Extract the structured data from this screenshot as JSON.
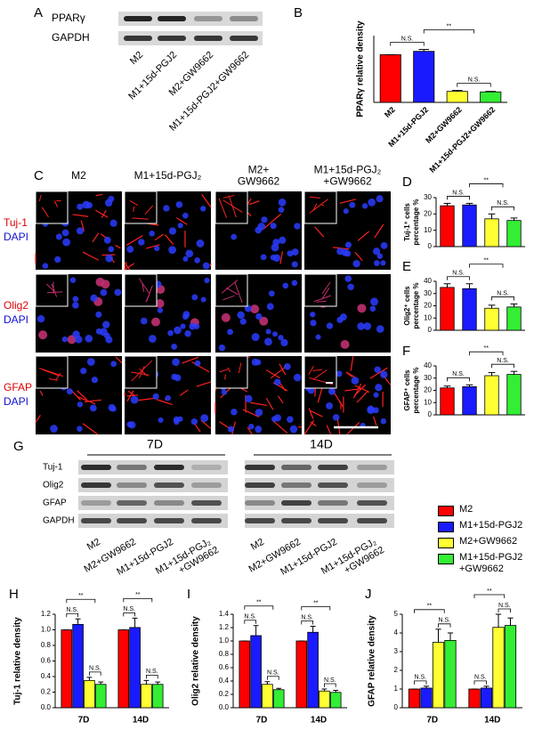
{
  "panel_labels": [
    "A",
    "B",
    "C",
    "D",
    "E",
    "F",
    "G",
    "H",
    "I",
    "J"
  ],
  "blot_a": {
    "rows": [
      "PPARγ",
      "GAPDH"
    ],
    "lanes": [
      "M2",
      "M1+15d-PGJ2",
      "M2+GW9662",
      "M1+15d-PGJ2+GW9662"
    ]
  },
  "micrographs": {
    "columns": [
      "M2",
      "M1+15d-PGJ₂",
      [
        "M2+",
        "GW9662"
      ],
      [
        "M1+15d-PGJ₂",
        "+GW9662"
      ]
    ],
    "rows": [
      [
        "Tuj-1",
        "DAPI"
      ],
      [
        "Olig2",
        "DAPI"
      ],
      [
        "GFAP",
        "DAPI"
      ]
    ]
  },
  "blot_g": {
    "timepoints": [
      "7D",
      "14D"
    ],
    "rows": [
      "Tuj-1",
      "Olig2",
      "GFAP",
      "GAPDH"
    ],
    "lanes": [
      "M2",
      "M2+GW9662",
      "M1+15d-PGJ2",
      [
        "M1+15d-PGJ₂",
        "+GW9662"
      ]
    ]
  },
  "chart_data": [
    {
      "type": "bar",
      "ylabel": "PPARγ  relative density",
      "categories": [
        "M2",
        "M1+15d-PGJ2",
        "M2+GW9662",
        "M1+15d-PGJ2+GW9662"
      ],
      "values": [
        1.0,
        1.07,
        0.23,
        0.22
      ],
      "errors": [
        0,
        0.04,
        0.02,
        0.01
      ],
      "colors": [
        "#ff0000",
        "#1a1aff",
        "#ffff33",
        "#33ee33"
      ],
      "ylim": [
        0,
        1.4
      ],
      "annotations": [
        "N.S.",
        "**",
        "N.S."
      ]
    },
    {
      "type": "bar",
      "ylabel": [
        "Tuj-1⁺ cells",
        "percentage %"
      ],
      "values": [
        25,
        25.5,
        17,
        16
      ],
      "errors": [
        1.5,
        1,
        3,
        1.5
      ],
      "colors": [
        "#ff0000",
        "#1a1aff",
        "#ffff33",
        "#33ee33"
      ],
      "ylim": [
        0,
        30
      ],
      "yticks": [
        0,
        10,
        20,
        30
      ],
      "annotations": [
        "N.S.",
        "**",
        "N.S."
      ]
    },
    {
      "type": "bar",
      "ylabel": [
        "Olig2⁺ cells",
        "percentage %"
      ],
      "values": [
        35,
        34,
        18,
        19
      ],
      "errors": [
        3,
        4,
        2.5,
        2.5
      ],
      "colors": [
        "#ff0000",
        "#1a1aff",
        "#ffff33",
        "#33ee33"
      ],
      "ylim": [
        0,
        40
      ],
      "yticks": [
        0,
        10,
        20,
        30,
        40
      ],
      "annotations": [
        "N.S.",
        "**",
        "N.S."
      ]
    },
    {
      "type": "bar",
      "ylabel": [
        "GFAP⁺ cells",
        "percentage %"
      ],
      "values": [
        22,
        23,
        32,
        33
      ],
      "errors": [
        1.5,
        1.5,
        2.5,
        2.5
      ],
      "colors": [
        "#ff0000",
        "#1a1aff",
        "#ffff33",
        "#33ee33"
      ],
      "ylim": [
        0,
        40
      ],
      "yticks": [
        0,
        10,
        20,
        30,
        40
      ],
      "annotations": [
        "N.S.",
        "**",
        "N.S."
      ]
    },
    {
      "type": "grouped_bar",
      "ylabel": "Tuj-1 relative density",
      "categories": [
        "7D",
        "14D"
      ],
      "series": [
        {
          "name": "M2",
          "color": "#ff0000",
          "values": [
            1.0,
            1.0
          ],
          "errors": [
            0,
            0
          ]
        },
        {
          "name": "M1+15d-PGJ2",
          "color": "#1a1aff",
          "values": [
            1.07,
            1.03
          ],
          "errors": [
            0.07,
            0.12
          ]
        },
        {
          "name": "M2+GW9662",
          "color": "#ffff33",
          "values": [
            0.35,
            0.3
          ],
          "errors": [
            0.04,
            0.05
          ]
        },
        {
          "name": "M1+15d-PGJ2 +GW9662",
          "color": "#33ee33",
          "values": [
            0.3,
            0.3
          ],
          "errors": [
            0.03,
            0.03
          ]
        }
      ],
      "ylim": [
        0,
        1.2
      ],
      "yticks": [
        {
          "value": 0,
          "label": "0.0"
        },
        0.2,
        0.4,
        0.6,
        0.8,
        {
          "value": 1,
          "label": "1.0"
        },
        1.2
      ],
      "annotations": [
        "**",
        "N.S.",
        "N.S.",
        "**",
        "N.S.",
        "N.S."
      ]
    },
    {
      "type": "grouped_bar",
      "ylabel": "Olig2 relative density",
      "categories": [
        "7D",
        "14D"
      ],
      "series": [
        {
          "color": "#ff0000",
          "values": [
            1.0,
            1.0
          ],
          "errors": [
            0,
            0
          ]
        },
        {
          "color": "#1a1aff",
          "values": [
            1.08,
            1.13
          ],
          "errors": [
            0.15,
            0.09
          ]
        },
        {
          "color": "#ffff33",
          "values": [
            0.35,
            0.25
          ],
          "errors": [
            0.04,
            0.03
          ]
        },
        {
          "color": "#33ee33",
          "values": [
            0.27,
            0.23
          ],
          "errors": [
            0.02,
            0.03
          ]
        }
      ],
      "ylim": [
        0,
        1.4
      ],
      "yticks": [
        {
          "value": 0,
          "label": "0.0"
        },
        0.2,
        0.4,
        0.6,
        0.8,
        {
          "value": 1,
          "label": "1.0"
        },
        1.2,
        1.4
      ],
      "annotations": [
        "**",
        "N.S.",
        "N.S.",
        "**",
        "N.S.",
        "N.S."
      ]
    },
    {
      "type": "grouped_bar",
      "ylabel": "GFAP relative density",
      "categories": [
        "7D",
        "14D"
      ],
      "series": [
        {
          "color": "#ff0000",
          "values": [
            1.0,
            1.0
          ],
          "errors": [
            0,
            0
          ]
        },
        {
          "color": "#1a1aff",
          "values": [
            1.05,
            1.05
          ],
          "errors": [
            0.1,
            0.1
          ]
        },
        {
          "color": "#ffff33",
          "values": [
            3.5,
            4.3
          ],
          "errors": [
            0.7,
            0.7
          ]
        },
        {
          "color": "#33ee33",
          "values": [
            3.6,
            4.4
          ],
          "errors": [
            0.4,
            0.4
          ]
        }
      ],
      "ylim": [
        0,
        5
      ],
      "yticks": [
        0,
        1,
        2,
        3,
        4,
        5
      ],
      "annotations": [
        "**",
        "N.S.",
        "N.S.",
        "**",
        "N.S.",
        "N.S."
      ]
    }
  ]
}
